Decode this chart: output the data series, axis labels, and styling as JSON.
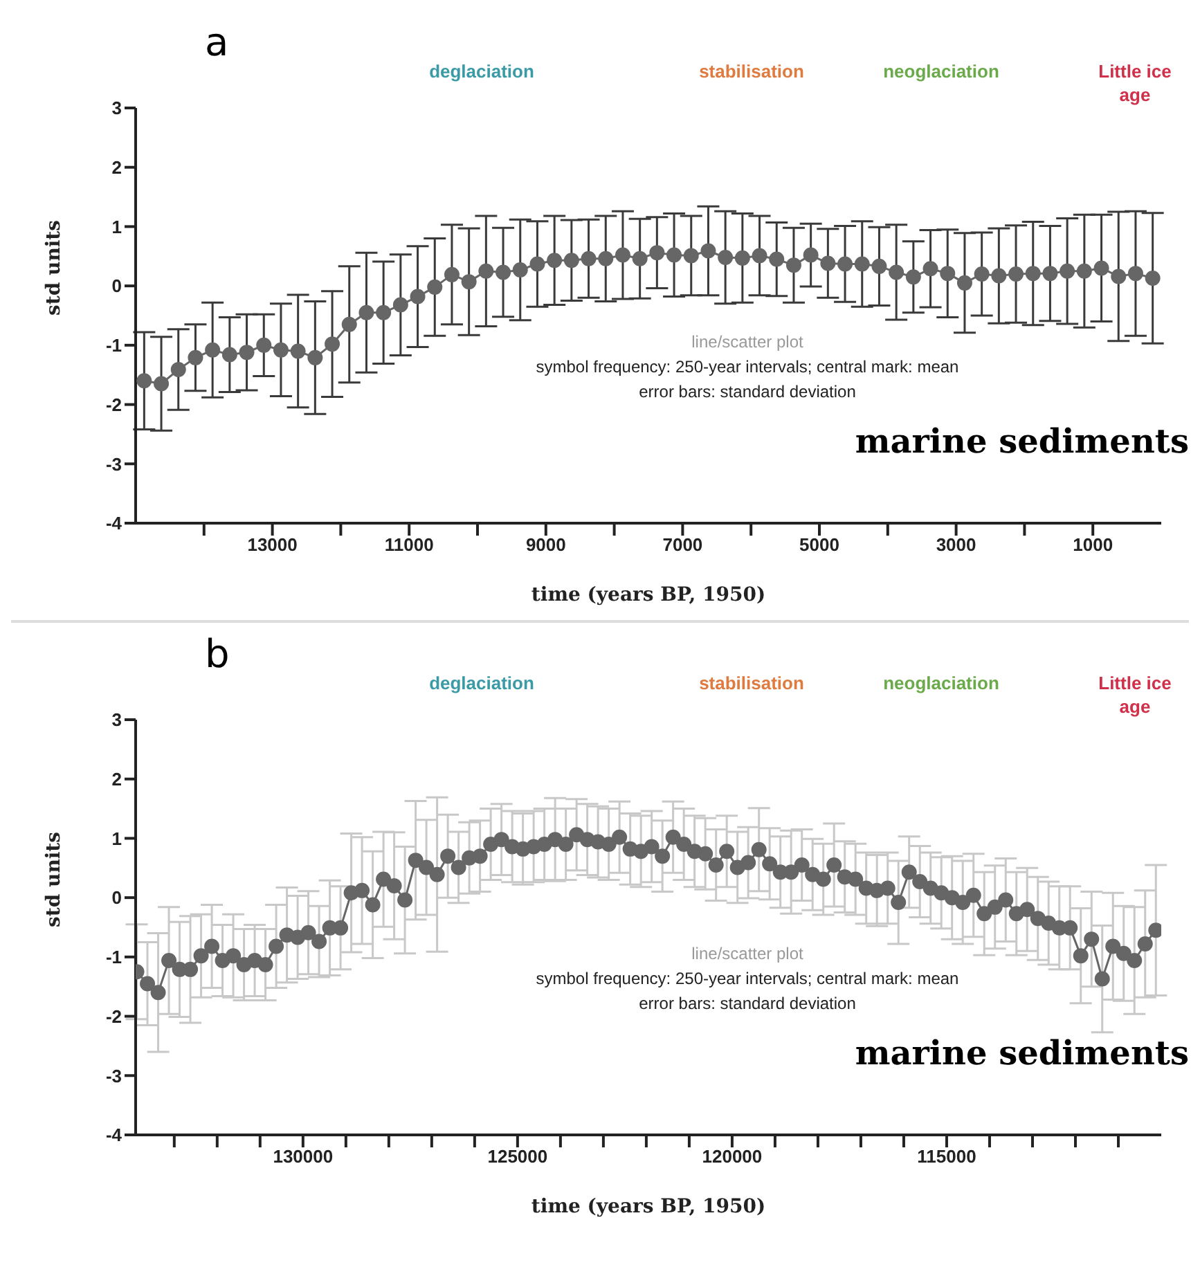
{
  "chart_data": [
    {
      "type": "line",
      "title": "a",
      "xlabel": "time (years BP, 1950)",
      "ylabel": "std units",
      "marker": "circle",
      "line_style": "solid",
      "grid": false,
      "legend": false,
      "annotations": [
        "deglaciation",
        "stabilisation",
        "neoglaciation",
        "Little ice age",
        "line/scatter plot",
        "symbol frequency: 250-year intervals; central mark: mean",
        "error bars: standard deviation",
        "marine sediments"
      ],
      "xlim": [
        15000,
        0
      ],
      "xticks": [
        {
          "value": 14000,
          "label": null
        },
        13000,
        {
          "value": 12000,
          "label": null
        },
        11000,
        {
          "value": 10000,
          "label": null
        },
        9000,
        {
          "value": 8000,
          "label": null
        },
        7000,
        {
          "value": 6000,
          "label": null
        },
        5000,
        {
          "value": 4000,
          "label": null
        },
        3000,
        {
          "value": 2000,
          "label": null
        },
        1000
      ],
      "ylim": [
        -4,
        3
      ],
      "yticks": [
        -4,
        -3,
        -2,
        -1,
        0,
        1,
        2,
        3
      ],
      "x": [
        14875,
        14625,
        14375,
        14125,
        13875,
        13625,
        13375,
        13125,
        12875,
        12625,
        12375,
        12125,
        11875,
        11625,
        11375,
        11125,
        10875,
        10625,
        10375,
        10125,
        9875,
        9625,
        9375,
        9125,
        8875,
        8625,
        8375,
        8125,
        7875,
        7625,
        7375,
        7125,
        6875,
        6625,
        6375,
        6125,
        5875,
        5625,
        5375,
        5125,
        4875,
        4625,
        4375,
        4125,
        3875,
        3625,
        3375,
        3125,
        2875,
        2625,
        2375,
        2125,
        1875,
        1625,
        1375,
        1125,
        875,
        625,
        375,
        125
      ],
      "series": [
        {
          "color": "#666666",
          "values": [
            -1.6,
            -1.65,
            -1.41,
            -1.21,
            -1.08,
            -1.16,
            -1.12,
            -1.0,
            -1.08,
            -1.1,
            -1.21,
            -0.98,
            -0.65,
            -0.45,
            -0.45,
            -0.32,
            -0.18,
            -0.02,
            0.19,
            0.07,
            0.25,
            0.23,
            0.27,
            0.37,
            0.43,
            0.43,
            0.46,
            0.46,
            0.52,
            0.46,
            0.56,
            0.52,
            0.51,
            0.59,
            0.48,
            0.47,
            0.51,
            0.45,
            0.35,
            0.52,
            0.38,
            0.37,
            0.37,
            0.33,
            0.23,
            0.15,
            0.29,
            0.21,
            0.05,
            0.2,
            0.17,
            0.2,
            0.21,
            0.21,
            0.25,
            0.25,
            0.3,
            0.16,
            0.21,
            0.13
          ],
          "errors": [
            0.82,
            0.79,
            0.68,
            0.56,
            0.8,
            0.63,
            0.64,
            0.52,
            0.78,
            0.95,
            0.95,
            0.89,
            0.98,
            1.01,
            0.86,
            0.85,
            0.85,
            0.82,
            0.84,
            0.9,
            0.93,
            0.75,
            0.85,
            0.72,
            0.75,
            0.68,
            0.66,
            0.72,
            0.74,
            0.67,
            0.6,
            0.7,
            0.67,
            0.75,
            0.78,
            0.75,
            0.67,
            0.62,
            0.63,
            0.53,
            0.58,
            0.64,
            0.72,
            0.66,
            0.8,
            0.6,
            0.65,
            0.74,
            0.84,
            0.7,
            0.8,
            0.82,
            0.87,
            0.8,
            0.89,
            0.95,
            0.9,
            1.09,
            1.05,
            1.1
          ]
        }
      ]
    },
    {
      "type": "line",
      "title": "b",
      "xlabel": "time (years BP, 1950)",
      "ylabel": "std units",
      "marker": "circle",
      "line_style": "solid",
      "grid": false,
      "legend": false,
      "annotations": [
        "deglaciation",
        "stabilisation",
        "neoglaciation",
        "Little ice age",
        "line/scatter plot",
        "symbol frequency: 250-year intervals; central mark: mean",
        "error bars: standard deviation",
        "marine sediments"
      ],
      "xlim": [
        133900,
        110000
      ],
      "xticks": [
        {
          "value": 133000,
          "label": null
        },
        {
          "value": 132000,
          "label": null
        },
        {
          "value": 131000,
          "label": null
        },
        130000,
        {
          "value": 129000,
          "label": null
        },
        {
          "value": 128000,
          "label": null
        },
        {
          "value": 127000,
          "label": null
        },
        {
          "value": 126000,
          "label": null
        },
        125000,
        {
          "value": 124000,
          "label": null
        },
        {
          "value": 123000,
          "label": null
        },
        {
          "value": 122000,
          "label": null
        },
        {
          "value": 121000,
          "label": null
        },
        120000,
        {
          "value": 119000,
          "label": null
        },
        {
          "value": 118000,
          "label": null
        },
        {
          "value": 117000,
          "label": null
        },
        {
          "value": 116000,
          "label": null
        },
        115000,
        {
          "value": 114000,
          "label": null
        },
        {
          "value": 113000,
          "label": null
        },
        {
          "value": 112000,
          "label": null
        },
        {
          "value": 111000,
          "label": null
        }
      ],
      "ylim": [
        -4,
        3
      ],
      "yticks": [
        -4,
        -3,
        -2,
        -1,
        0,
        1,
        2,
        3
      ],
      "x": [
        133875,
        133625,
        133375,
        133125,
        132875,
        132625,
        132375,
        132125,
        131875,
        131625,
        131375,
        131125,
        130875,
        130625,
        130375,
        130125,
        129875,
        129625,
        129375,
        129125,
        128875,
        128625,
        128375,
        128125,
        127875,
        127625,
        127375,
        127125,
        126875,
        126625,
        126375,
        126125,
        125875,
        125625,
        125375,
        125125,
        124875,
        124625,
        124375,
        124125,
        123875,
        123625,
        123375,
        123125,
        122875,
        122625,
        122375,
        122125,
        121875,
        121625,
        121375,
        121125,
        120875,
        120625,
        120375,
        120125,
        119875,
        119625,
        119375,
        119125,
        118875,
        118625,
        118375,
        118125,
        117875,
        117625,
        117375,
        117125,
        116875,
        116625,
        116375,
        116125,
        115875,
        115625,
        115375,
        115125,
        114875,
        114625,
        114375,
        114125,
        113875,
        113625,
        113375,
        113125,
        112875,
        112625,
        112375,
        112125,
        111875,
        111625,
        111375,
        111125,
        110875,
        110625,
        110375,
        110125
      ],
      "series": [
        {
          "color": "#666666",
          "values": [
            -1.25,
            -1.45,
            -1.6,
            -1.06,
            -1.21,
            -1.21,
            -0.98,
            -0.82,
            -1.06,
            -0.98,
            -1.13,
            -1.06,
            -1.13,
            -0.82,
            -0.63,
            -0.67,
            -0.59,
            -0.74,
            -0.51,
            -0.51,
            0.08,
            0.12,
            -0.12,
            0.31,
            0.2,
            -0.04,
            0.63,
            0.51,
            0.39,
            0.7,
            0.51,
            0.67,
            0.7,
            0.9,
            0.98,
            0.86,
            0.82,
            0.86,
            0.9,
            0.98,
            0.9,
            1.06,
            0.98,
            0.94,
            0.9,
            1.02,
            0.82,
            0.78,
            0.86,
            0.7,
            1.02,
            0.9,
            0.78,
            0.74,
            0.55,
            0.78,
            0.51,
            0.59,
            0.81,
            0.57,
            0.43,
            0.43,
            0.55,
            0.39,
            0.31,
            0.55,
            0.35,
            0.31,
            0.16,
            0.12,
            0.16,
            -0.08,
            0.43,
            0.27,
            0.16,
            0.08,
            0.0,
            -0.08,
            0.04,
            -0.27,
            -0.16,
            -0.04,
            -0.27,
            -0.2,
            -0.35,
            -0.43,
            -0.51,
            -0.51,
            -0.98,
            -0.7,
            -1.37,
            -0.82,
            -0.94,
            -1.06,
            -0.78,
            -0.55
          ],
          "errors": [
            0.8,
            0.7,
            1.0,
            0.9,
            0.8,
            0.9,
            0.7,
            0.7,
            0.6,
            0.7,
            0.6,
            0.6,
            0.6,
            0.7,
            0.8,
            0.7,
            0.7,
            0.6,
            0.8,
            0.7,
            1.0,
            0.9,
            0.9,
            0.8,
            0.9,
            0.9,
            1.0,
            0.8,
            1.3,
            0.7,
            0.6,
            0.6,
            0.6,
            0.6,
            0.6,
            0.6,
            0.6,
            0.6,
            0.6,
            0.7,
            0.6,
            0.6,
            0.6,
            0.6,
            0.6,
            0.6,
            0.6,
            0.6,
            0.6,
            0.6,
            0.6,
            0.6,
            0.6,
            0.6,
            0.6,
            0.6,
            0.6,
            0.6,
            0.7,
            0.6,
            0.6,
            0.7,
            0.6,
            0.6,
            0.6,
            0.7,
            0.6,
            0.6,
            0.6,
            0.6,
            0.6,
            0.7,
            0.6,
            0.6,
            0.6,
            0.6,
            0.7,
            0.7,
            0.7,
            0.7,
            0.7,
            0.7,
            0.7,
            0.7,
            0.7,
            0.7,
            0.7,
            0.7,
            0.8,
            0.8,
            0.9,
            0.9,
            0.8,
            0.9,
            0.9,
            1.1
          ]
        }
      ]
    }
  ]
}
